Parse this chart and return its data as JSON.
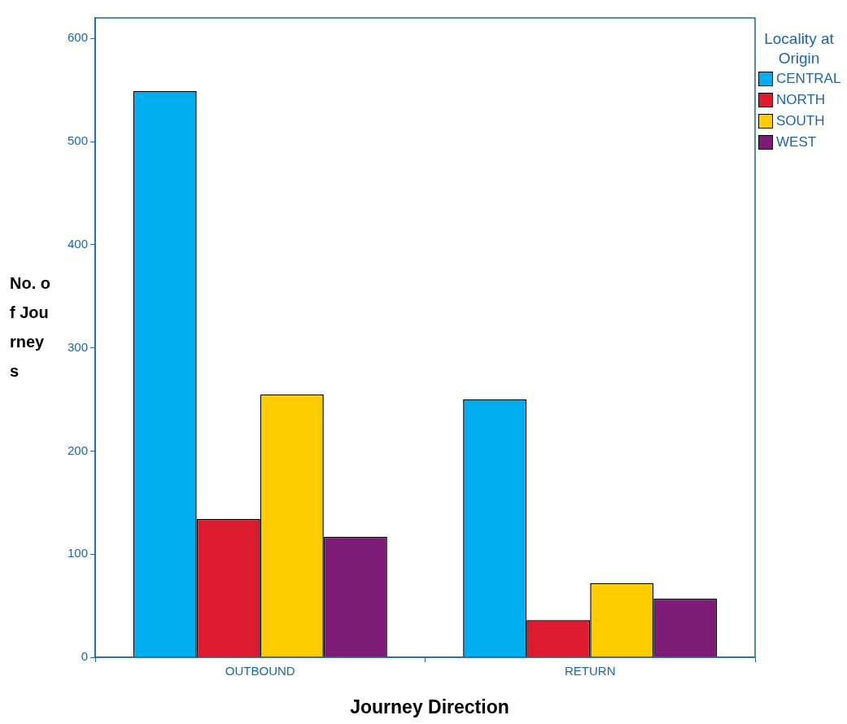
{
  "chart_data": {
    "type": "bar",
    "xlabel": "Journey Direction",
    "ylabel": "No. of Journeys",
    "legend_title": "Locality at Origin",
    "legend": "top right",
    "grid": false,
    "categories": [
      "OUTBOUND",
      "RETURN"
    ],
    "ylim": [
      0,
      620
    ],
    "yticks": [
      0,
      100,
      200,
      300,
      400,
      500,
      600
    ],
    "series": [
      {
        "name": "CENTRAL",
        "color": "#00aeef",
        "values": [
          549,
          250
        ]
      },
      {
        "name": "NORTH",
        "color": "#dc1c2e",
        "values": [
          134,
          36
        ]
      },
      {
        "name": "SOUTH",
        "color": "#ffcc00",
        "values": [
          255,
          72
        ]
      },
      {
        "name": "WEST",
        "color": "#7d1b76",
        "values": [
          117,
          57
        ]
      }
    ]
  }
}
